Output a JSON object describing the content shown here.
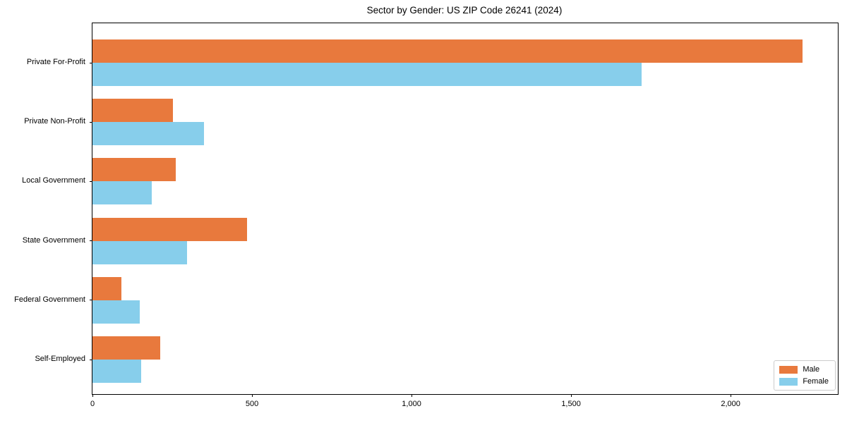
{
  "title": "Sector by Gender: US ZIP Code 26241 (2024)",
  "chart_data": {
    "type": "bar",
    "orientation": "horizontal",
    "title": "Sector by Gender: US ZIP Code 26241 (2024)",
    "categories": [
      "Private For-Profit",
      "Private Non-Profit",
      "Local Government",
      "State Government",
      "Federal Government",
      "Self-Employed"
    ],
    "series": [
      {
        "name": "Male",
        "color": "#e8793d",
        "values": [
          2225,
          252,
          262,
          484,
          90,
          212
        ]
      },
      {
        "name": "Female",
        "color": "#87ceeb",
        "values": [
          1722,
          350,
          186,
          296,
          148,
          153
        ]
      }
    ],
    "xlabel": "",
    "ylabel": "",
    "x_ticks": [
      0,
      500,
      1000,
      1500,
      2000
    ],
    "x_tick_labels": [
      "0",
      "500",
      "1,000",
      "1,500",
      "2,000"
    ],
    "xlim": [
      0,
      2336
    ],
    "grid": false,
    "legend_position": "lower right"
  },
  "legend": {
    "items": [
      {
        "label": "Male",
        "color": "#e8793d"
      },
      {
        "label": "Female",
        "color": "#87ceeb"
      }
    ]
  }
}
